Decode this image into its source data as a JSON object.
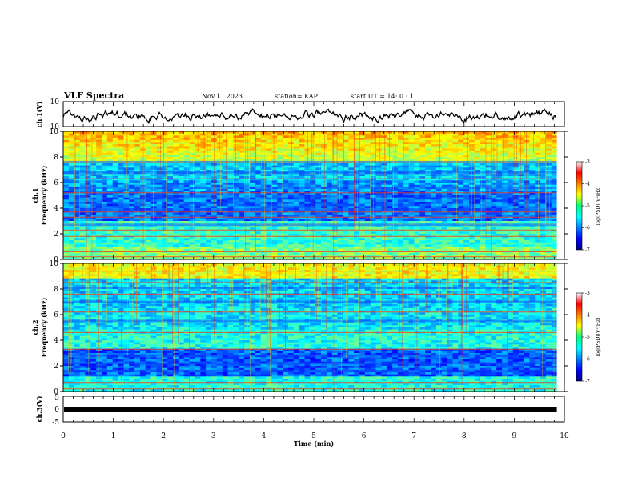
{
  "header": {
    "title": "VLF Spectra",
    "date": "Nov.1  , 2023",
    "station": "station= KAP",
    "start": "start  UT =   14: 0  : 1"
  },
  "chart_data": [
    {
      "type": "line",
      "name": "ch1-waveform",
      "ylabel": "ch.1(V)",
      "ylim": [
        -10,
        10
      ],
      "yticks": [
        "10",
        "-10"
      ],
      "xlim": [
        0,
        10
      ],
      "x_end": 9.85
    },
    {
      "type": "heatmap",
      "name": "ch1-spectrogram",
      "ylabel": "ch.1",
      "ylabel2": "Frequency (kHz)",
      "ylim": [
        0,
        10
      ],
      "yticks": [
        "0",
        "2",
        "4",
        "6",
        "8",
        "10"
      ],
      "colorbar": {
        "label": "log(PSD)(V²/Hz)",
        "min": -7,
        "max": -3,
        "ticks": [
          "-3",
          "-4",
          "-5",
          "-6",
          "-7"
        ]
      },
      "bright_bands_khz": [
        0.2,
        0.6,
        1.8,
        2.3,
        3.3,
        3.7,
        5.2,
        6.3,
        6.6
      ],
      "dark_bands_khz": [
        2.7,
        3.9,
        5.6,
        6.8,
        7.6
      ]
    },
    {
      "type": "heatmap",
      "name": "ch2-spectrogram",
      "ylabel": "ch.2",
      "ylabel2": "Frequency (kHz)",
      "ylim": [
        0,
        10
      ],
      "yticks": [
        "0",
        "2",
        "4",
        "6",
        "8",
        "10"
      ],
      "colorbar": {
        "label": "log(PSD)(V²/Hz)",
        "min": -7,
        "max": -3,
        "ticks": [
          "-3",
          "-4",
          "-5",
          "-6",
          "-7"
        ]
      },
      "bright_bands_khz": [
        0.2,
        0.7,
        3.3,
        4.6,
        6.2,
        7.6,
        8.5,
        9.4
      ],
      "dark_bands_khz": [
        1.6,
        2.2,
        2.8,
        5.5,
        7.0,
        8.1
      ]
    },
    {
      "type": "line",
      "name": "ch3-voltage",
      "ylabel": "ch.3(V)",
      "ylim": [
        -5,
        5
      ],
      "yticks": [
        "5",
        "0",
        "-5"
      ],
      "value": 0,
      "xlim": [
        0,
        10
      ],
      "x_end": 9.85
    }
  ],
  "xaxis": {
    "label": "Time  (min)",
    "ticks": [
      "0",
      "1",
      "2",
      "3",
      "4",
      "5",
      "6",
      "7",
      "8",
      "9",
      "10"
    ]
  }
}
